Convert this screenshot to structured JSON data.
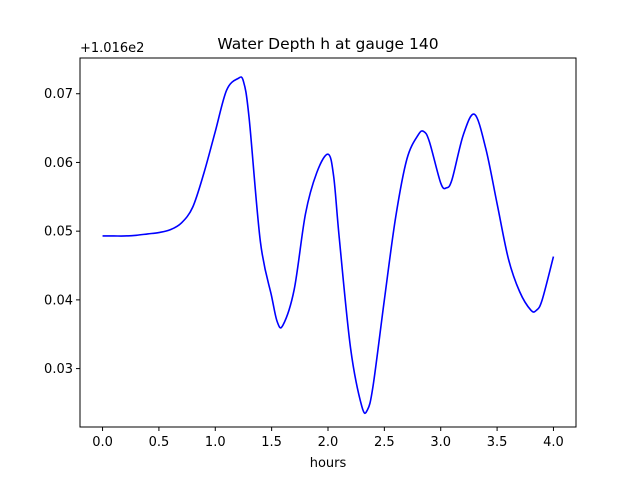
{
  "chart_data": {
    "type": "line",
    "title": "Water Depth h at gauge 140",
    "xlabel": "hours",
    "ylabel": "",
    "y_offset_label": "+1.016e2",
    "xlim": [
      -0.2,
      4.2
    ],
    "ylim": [
      0.0215,
      0.0752
    ],
    "xticks": [
      0.0,
      0.5,
      1.0,
      1.5,
      2.0,
      2.5,
      3.0,
      3.5,
      4.0
    ],
    "xtick_labels": [
      "0.0",
      "0.5",
      "1.0",
      "1.5",
      "2.0",
      "2.5",
      "3.0",
      "3.5",
      "4.0"
    ],
    "yticks": [
      0.03,
      0.04,
      0.05,
      0.06,
      0.07
    ],
    "ytick_labels": [
      "0.03",
      "0.04",
      "0.05",
      "0.06",
      "0.07"
    ],
    "grid": false,
    "series": [
      {
        "color": "#0000ff",
        "x": [
          0.0,
          0.1,
          0.2,
          0.3,
          0.4,
          0.5,
          0.6,
          0.7,
          0.8,
          0.9,
          1.0,
          1.1,
          1.2,
          1.25,
          1.3,
          1.4,
          1.5,
          1.55,
          1.6,
          1.7,
          1.8,
          1.9,
          2.0,
          2.05,
          2.1,
          2.2,
          2.3,
          2.35,
          2.4,
          2.5,
          2.6,
          2.7,
          2.8,
          2.85,
          2.9,
          3.0,
          3.05,
          3.1,
          3.2,
          3.3,
          3.4,
          3.5,
          3.6,
          3.7,
          3.8,
          3.85,
          3.9,
          4.0
        ],
        "y": [
          0.0493,
          0.0493,
          0.0493,
          0.0494,
          0.0496,
          0.0498,
          0.0502,
          0.0512,
          0.0535,
          0.0585,
          0.0645,
          0.0705,
          0.0722,
          0.0718,
          0.0665,
          0.0485,
          0.0405,
          0.0368,
          0.0363,
          0.0415,
          0.0525,
          0.0585,
          0.0612,
          0.058,
          0.049,
          0.033,
          0.0245,
          0.024,
          0.0275,
          0.04,
          0.052,
          0.0605,
          0.064,
          0.0645,
          0.063,
          0.057,
          0.0563,
          0.0575,
          0.064,
          0.067,
          0.062,
          0.054,
          0.046,
          0.0412,
          0.0385,
          0.0385,
          0.04,
          0.0463
        ]
      }
    ]
  }
}
